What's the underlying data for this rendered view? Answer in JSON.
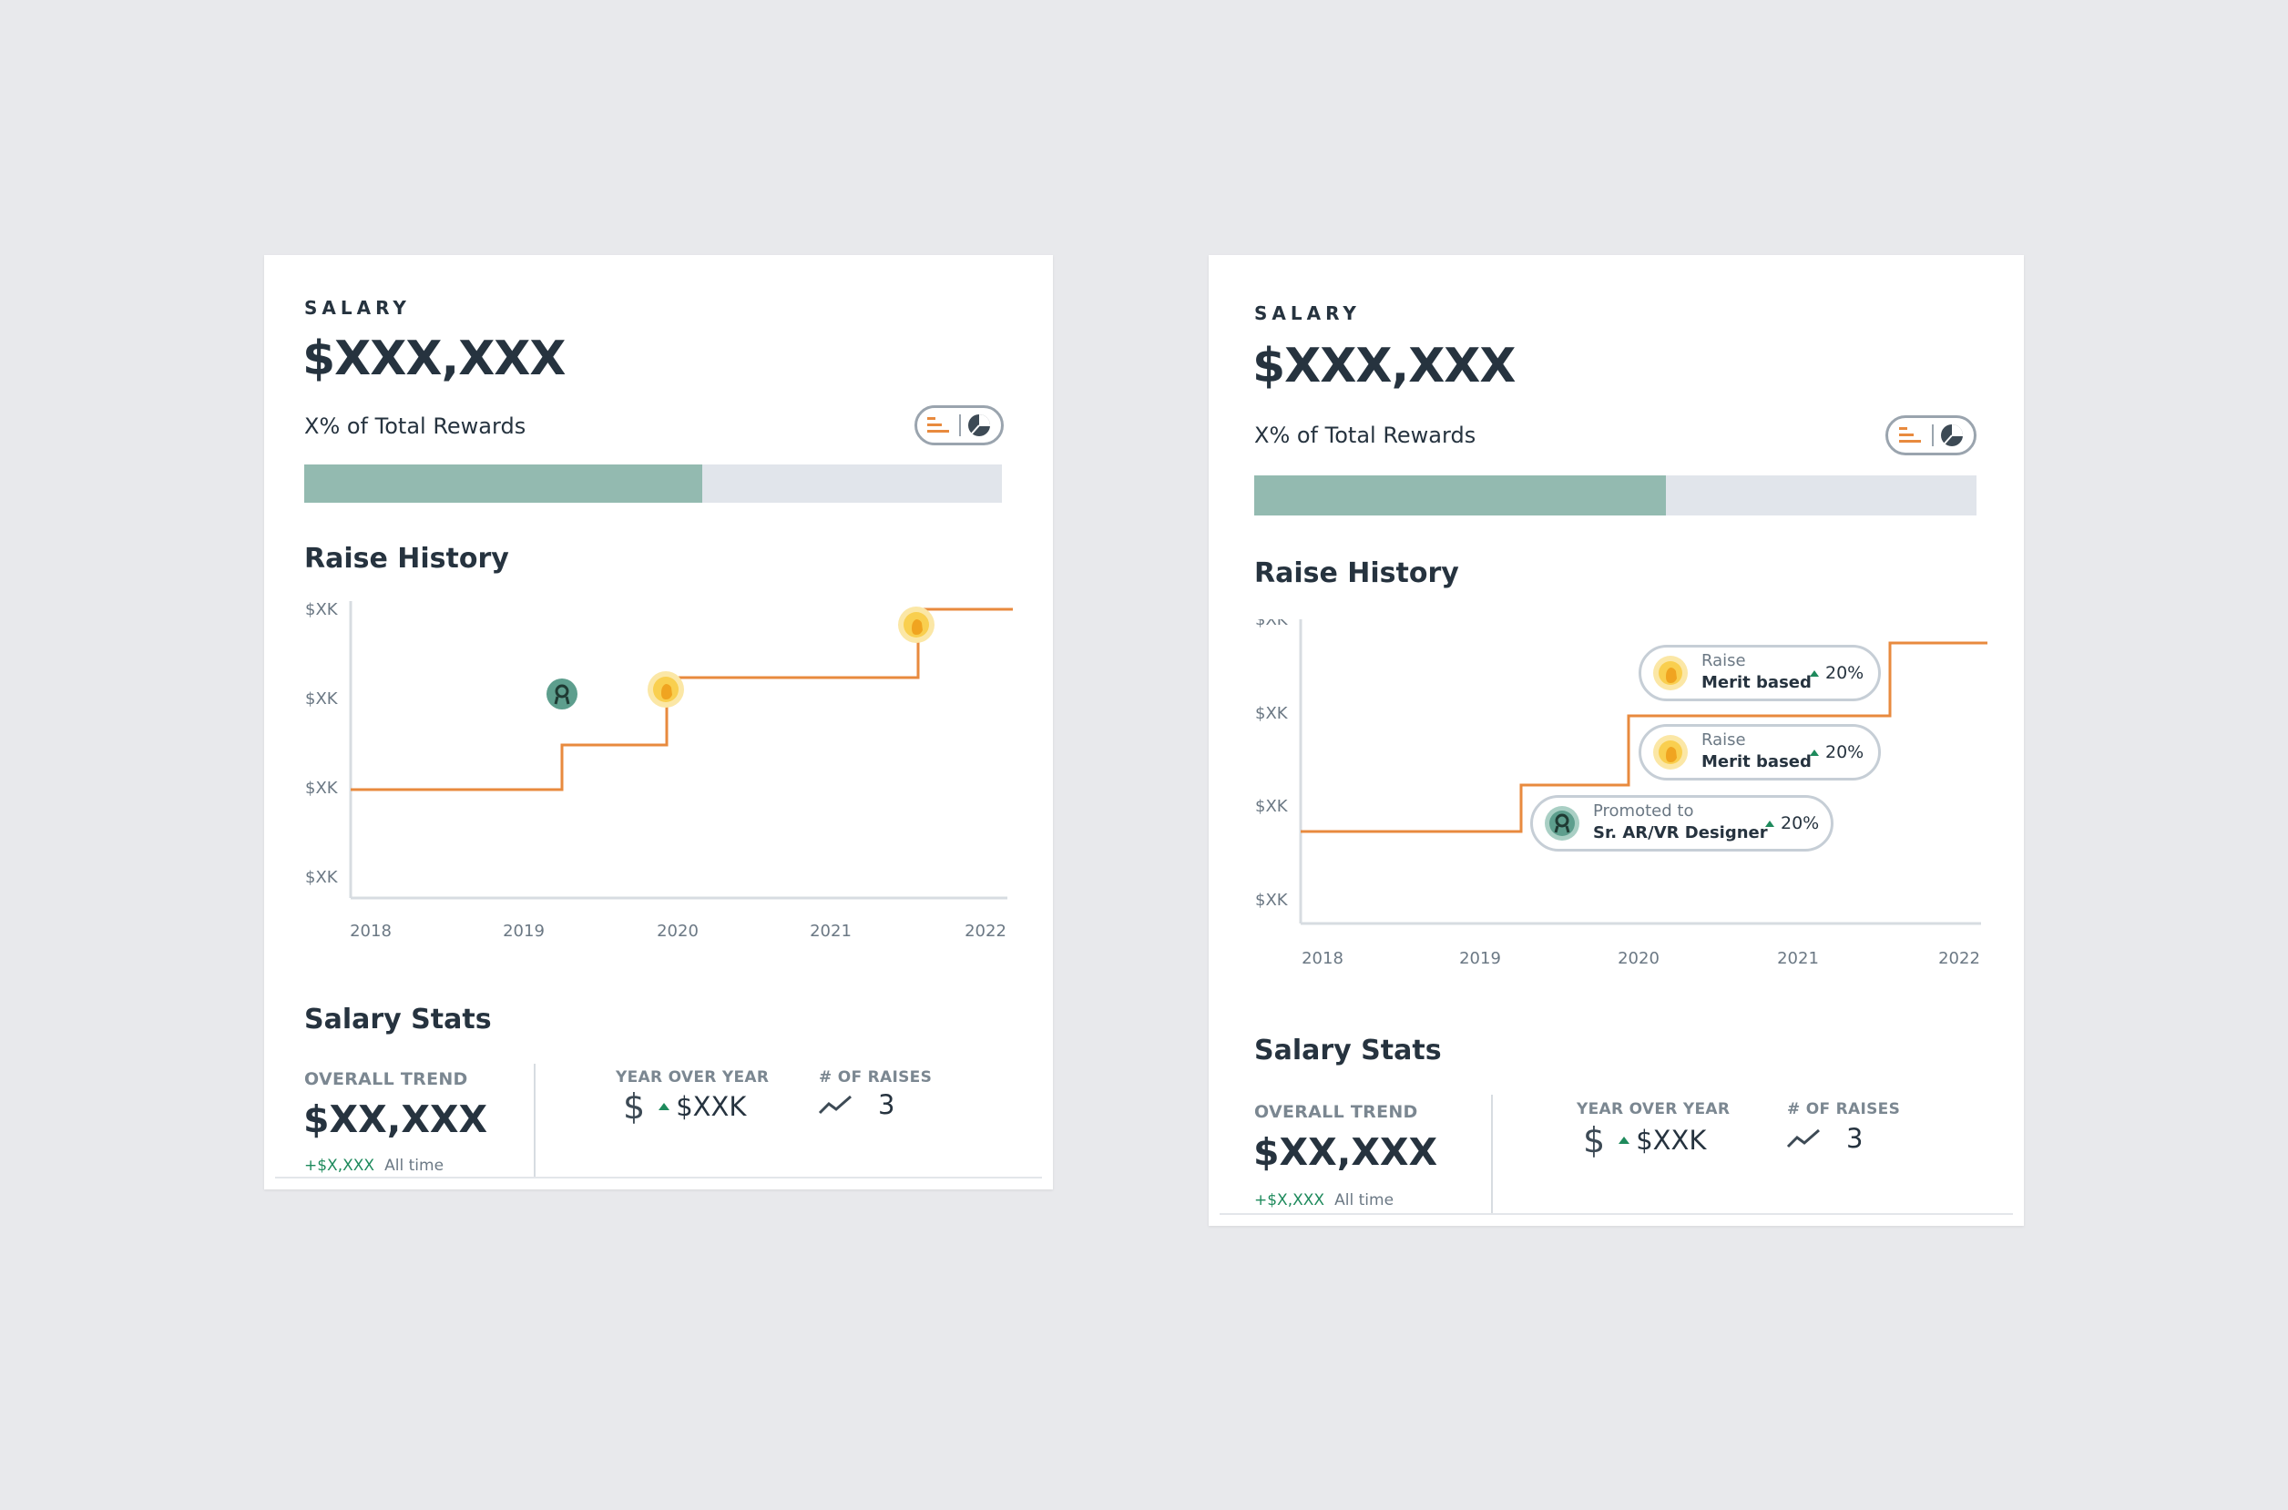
{
  "cards": [
    {
      "salary_label": "SALARY",
      "salary_amount": "$XXX,XXX",
      "rewards_text": "X% of Total Rewards",
      "rewards_fill_fraction": 0.57,
      "raise_history_title": "Raise History",
      "y_ticks": [
        "$XK",
        "$XK",
        "$XK",
        "$XK"
      ],
      "x_ticks": [
        "2018",
        "2019",
        "2020",
        "2021",
        "2022"
      ],
      "stats_title": "Salary Stats",
      "overall_trend_label": "OVERALL TREND",
      "overall_trend_value": "$XX,XXX",
      "overall_delta": "+$X,XXX",
      "overall_period": "All time",
      "yoy_label": "YEAR OVER YEAR",
      "yoy_value": "$XXK",
      "raises_label": "# OF RAISES",
      "raises_value": "3"
    },
    {
      "salary_label": "SALARY",
      "salary_amount": "$XXX,XXX",
      "rewards_text": "X% of Total Rewards",
      "rewards_fill_fraction": 0.57,
      "raise_history_title": "Raise History",
      "y_ticks": [
        "$XK",
        "$XK",
        "$XK",
        "$XK"
      ],
      "x_ticks": [
        "2018",
        "2019",
        "2020",
        "2021",
        "2022"
      ],
      "events": [
        {
          "type": "Raise",
          "detail": "Merit based",
          "pct": "20%"
        },
        {
          "type": "Raise",
          "detail": "Merit based",
          "pct": "20%"
        },
        {
          "type": "Promoted to",
          "detail": "Sr. AR/VR Designer",
          "pct": "20%"
        }
      ],
      "stats_title": "Salary Stats",
      "overall_trend_label": "OVERALL TREND",
      "overall_trend_value": "$XX,XXX",
      "overall_delta": "+$X,XXX",
      "overall_period": "All time",
      "yoy_label": "YEAR OVER YEAR",
      "yoy_value": "$XXK",
      "raises_label": "# OF RAISES",
      "raises_value": "3"
    }
  ],
  "colors": {
    "accent_orange": "#e88a3e",
    "bar_fill": "#93bab0",
    "bar_track": "#e1e5eb",
    "promotion_badge": "#5d9e8d",
    "raise_badge": "#f9cf4f",
    "up_arrow": "#1e8a5c"
  },
  "icons": [
    "bar-chart-icon",
    "pie-chart-icon",
    "dollar-icon",
    "trend-line-icon",
    "ribbon-icon",
    "hand-icon",
    "caret-up-icon"
  ]
}
